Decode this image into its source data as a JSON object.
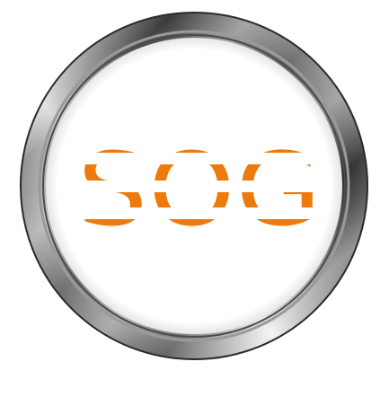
{
  "logo": {
    "text": "SOG",
    "text_color": "#ec7a0c",
    "background_color": "#ffffff",
    "ring_style": "chrome"
  }
}
